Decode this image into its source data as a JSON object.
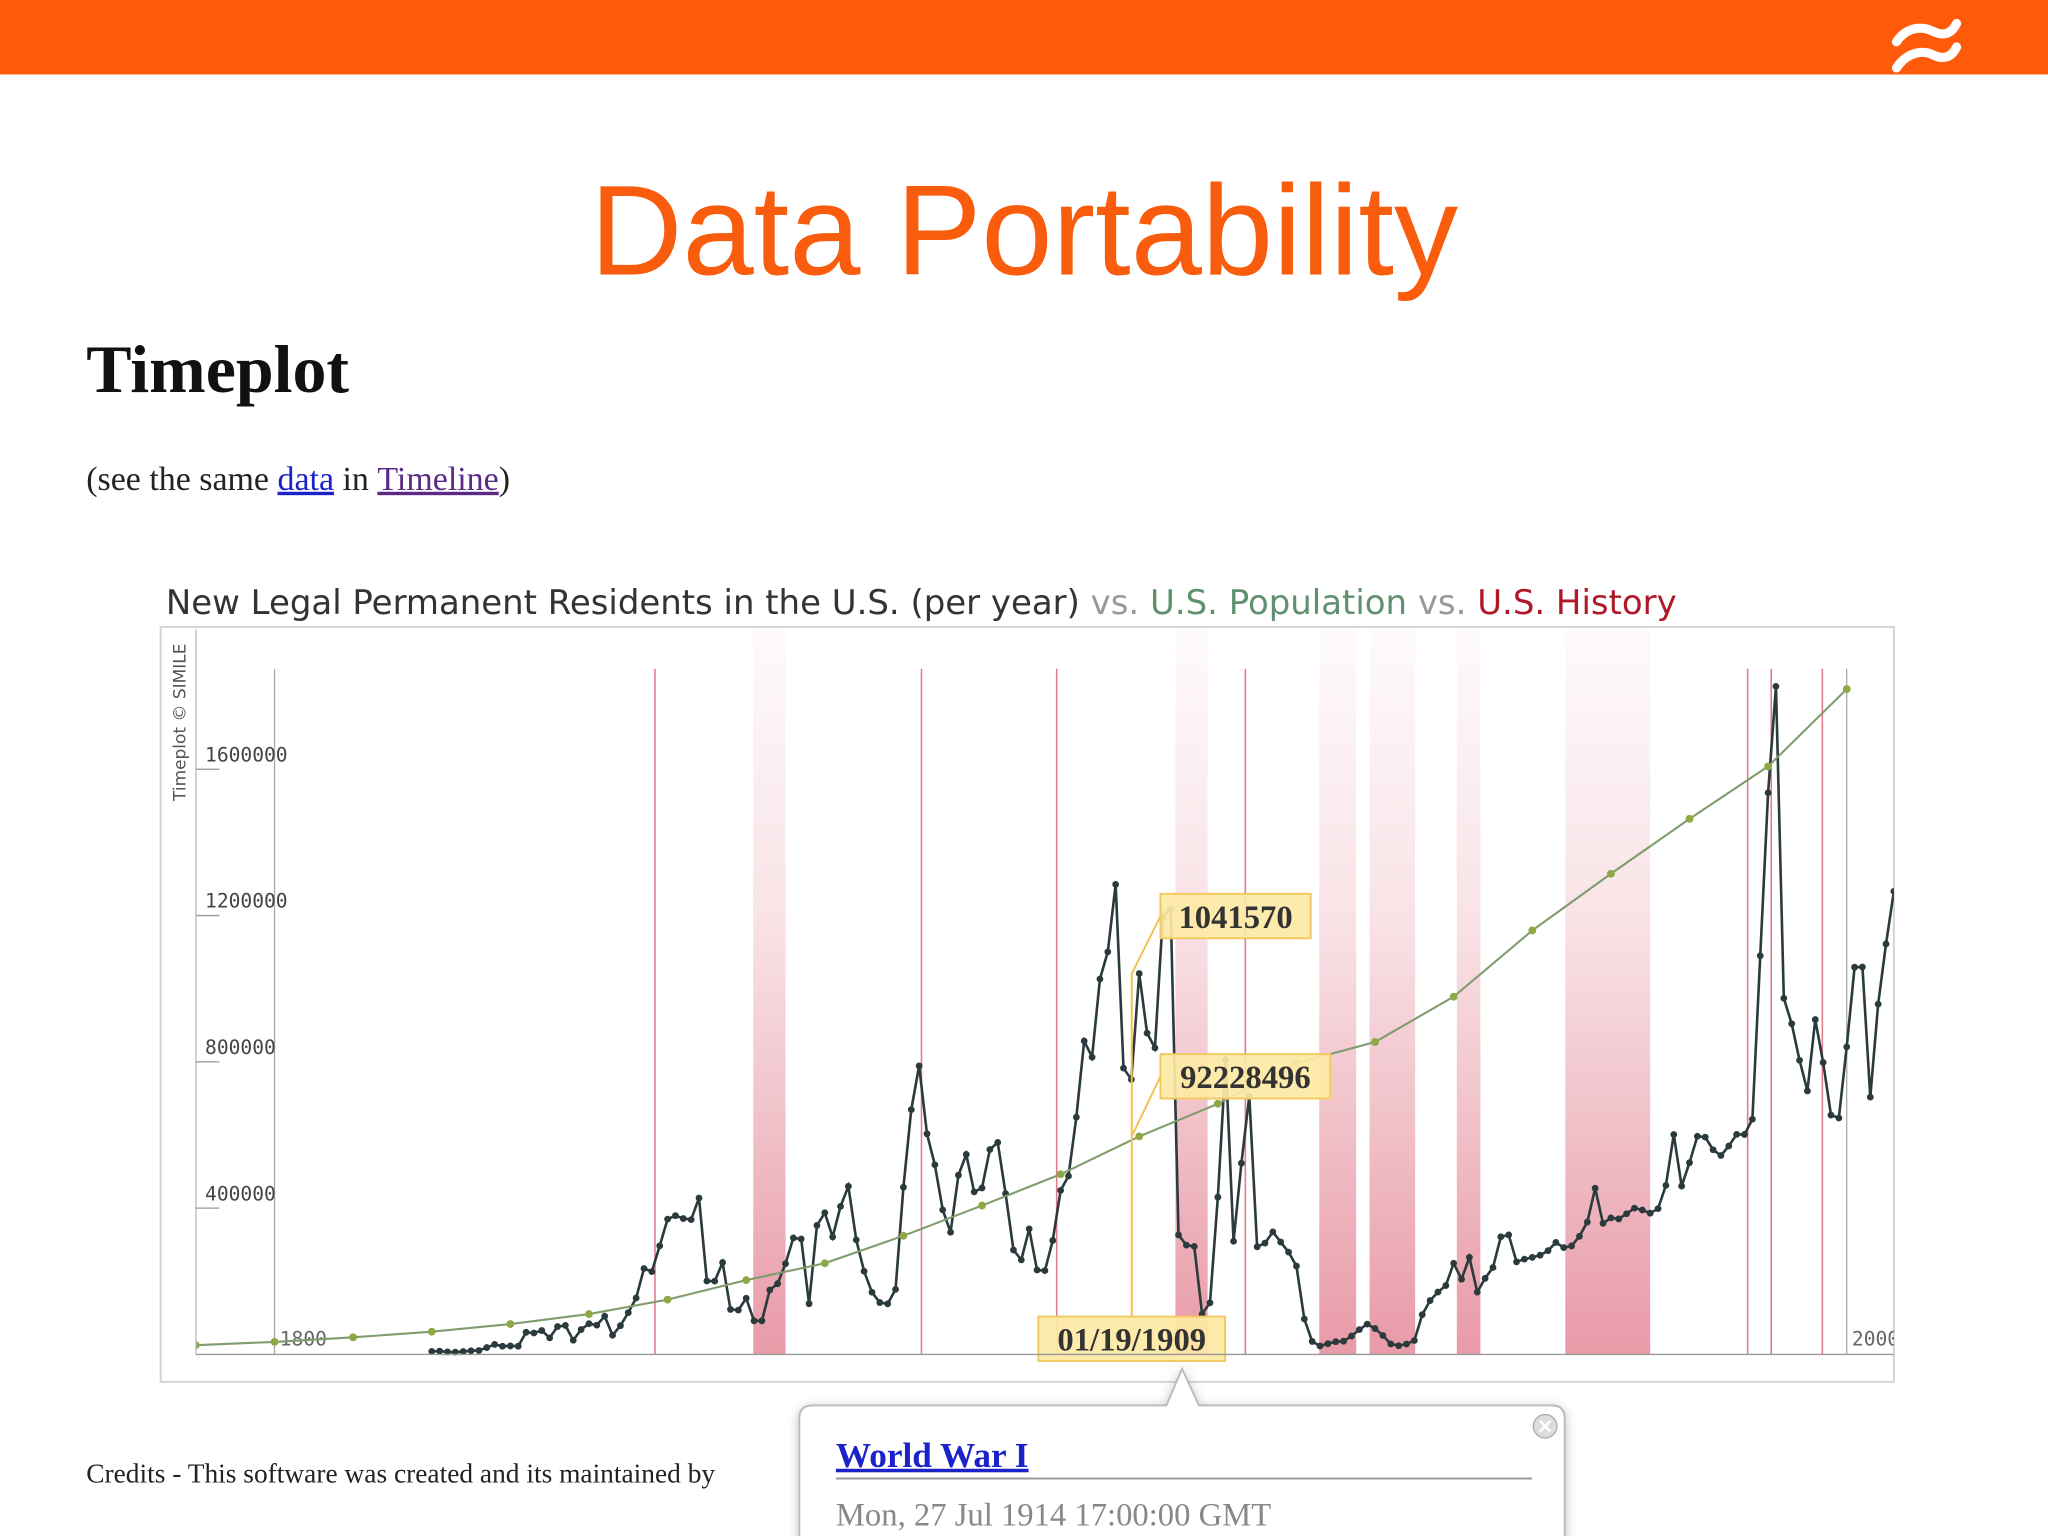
{
  "slide": {
    "title": "Data Portability"
  },
  "page": {
    "heading": "Timeplot",
    "intro": {
      "before": "(see the same ",
      "link1": "data",
      "middle": " in ",
      "link2": "Timeline",
      "after": ")"
    },
    "credits": "Credits - This software was created and its maintained by",
    "side_note": "Timeplot © SIMILE"
  },
  "chart_data": {
    "type": "line",
    "title_parts": [
      {
        "text": "New Legal Permanent Residents in the U.S. (per year)",
        "color": "#333333"
      },
      {
        "text": " vs. ",
        "color": "#999999"
      },
      {
        "text": "U.S. Population",
        "color": "#5f9070"
      },
      {
        "text": " vs. ",
        "color": "#999999"
      },
      {
        "text": "U.S. History",
        "color": "#b0182a"
      }
    ],
    "xlim": [
      1790,
      2006
    ],
    "xticks": [
      1800,
      2000
    ],
    "ylim": [
      0,
      1982000
    ],
    "yticks": [
      400000,
      800000,
      1200000,
      1600000
    ],
    "y2lim": [
      0,
      306600000
    ],
    "series": [
      {
        "name": "New Legal Permanent Residents in the U.S. (per year)",
        "color": "#2b3a3c",
        "x": [
          1820,
          1821,
          1822,
          1823,
          1824,
          1825,
          1826,
          1827,
          1828,
          1829,
          1830,
          1831,
          1832,
          1833,
          1834,
          1835,
          1836,
          1837,
          1838,
          1839,
          1840,
          1841,
          1842,
          1843,
          1844,
          1845,
          1846,
          1847,
          1848,
          1849,
          1850,
          1851,
          1852,
          1853,
          1854,
          1855,
          1856,
          1857,
          1858,
          1859,
          1860,
          1861,
          1862,
          1863,
          1864,
          1865,
          1866,
          1867,
          1868,
          1869,
          1870,
          1871,
          1872,
          1873,
          1874,
          1875,
          1876,
          1877,
          1878,
          1879,
          1880,
          1881,
          1882,
          1883,
          1884,
          1885,
          1886,
          1887,
          1888,
          1889,
          1890,
          1891,
          1892,
          1893,
          1894,
          1895,
          1896,
          1897,
          1898,
          1899,
          1900,
          1901,
          1902,
          1903,
          1904,
          1905,
          1906,
          1907,
          1908,
          1909,
          1910,
          1911,
          1912,
          1913,
          1914,
          1915,
          1916,
          1917,
          1918,
          1919,
          1920,
          1921,
          1922,
          1923,
          1924,
          1925,
          1926,
          1927,
          1928,
          1929,
          1930,
          1931,
          1932,
          1933,
          1934,
          1935,
          1936,
          1937,
          1938,
          1939,
          1940,
          1941,
          1942,
          1943,
          1944,
          1945,
          1946,
          1947,
          1948,
          1949,
          1950,
          1951,
          1952,
          1953,
          1954,
          1955,
          1956,
          1957,
          1958,
          1959,
          1960,
          1961,
          1962,
          1963,
          1964,
          1965,
          1966,
          1967,
          1968,
          1969,
          1970,
          1971,
          1972,
          1973,
          1974,
          1975,
          1976,
          1977,
          1978,
          1979,
          1980,
          1981,
          1982,
          1983,
          1984,
          1985,
          1986,
          1987,
          1988,
          1989,
          1990,
          1991,
          1992,
          1993,
          1994,
          1995,
          1996,
          1997,
          1998,
          1999,
          2000,
          2001,
          2002,
          2003,
          2004,
          2005,
          2006
        ],
        "values": [
          8385,
          9127,
          6911,
          6354,
          7912,
          10199,
          10837,
          18875,
          27382,
          22520,
          23322,
          22633,
          60482,
          58640,
          65365,
          45374,
          76242,
          79340,
          38914,
          68069,
          84066,
          80289,
          104565,
          52496,
          78615,
          114371,
          154416,
          234968,
          226527,
          297024,
          369980,
          379466,
          371603,
          368645,
          427833,
          200877,
          200436,
          251306,
          123126,
          121282,
          153640,
          91918,
          91985,
          176282,
          193418,
          248120,
          318568,
          315722,
          138840,
          352768,
          387203,
          321350,
          404806,
          459803,
          313339,
          227498,
          169986,
          141857,
          138469,
          177826,
          457257,
          669431,
          788992,
          603322,
          518592,
          395346,
          334203,
          490109,
          546889,
          444427,
          455302,
          560319,
          579663,
          439730,
          285631,
          258536,
          343267,
          230832,
          229299,
          311715,
          448572,
          487918,
          648743,
          857046,
          812870,
          1026499,
          1100735,
          1285349,
          782870,
          751786,
          1041570,
          878587,
          838172,
          1197892,
          1218480,
          326700,
          298826,
          295403,
          110618,
          141132,
          430001,
          805228,
          309556,
          522919,
          706896,
          294314,
          304488,
          335175,
          307255,
          279678,
          241700,
          97139,
          35576,
          23068,
          29470,
          34956,
          36329,
          50244,
          67895,
          82998,
          70756,
          51776,
          28781,
          23725,
          28551,
          38119,
          108721,
          147292,
          170570,
          188317,
          249187,
          205717,
          265520,
          170434,
          208177,
          237790,
          321625,
          326867,
          253265,
          260686,
          265398,
          271344,
          283763,
          306260,
          292248,
          296697,
          323040,
          361972,
          454448,
          358579,
          373326,
          370478,
          384685,
          400063,
          394861,
          386194,
          398613,
          462315,
          601442,
          460348,
          524295,
          596600,
          594131,
          559763,
          543903,
          570009,
          601708,
          601516,
          643025,
          1090172,
          1535872,
          1826595,
          973977,
          904292,
          804416,
          720461,
          915900,
          798378,
          654451,
          646568,
          841002,
          1058902,
          1059356,
          703542,
          957883,
          1122373,
          1266129
        ]
      },
      {
        "name": "U.S. Population",
        "color": "#7f9c6e",
        "marker_color": "#8fa845",
        "axis": "y2",
        "x": [
          1790,
          1800,
          1810,
          1820,
          1830,
          1840,
          1850,
          1860,
          1870,
          1880,
          1890,
          1900,
          1910,
          1920,
          1930,
          1940,
          1950,
          1960,
          1970,
          1980,
          1990,
          2000
        ],
        "values": [
          3929214,
          5308483,
          7239881,
          9638453,
          12866020,
          17069453,
          23191876,
          31443321,
          38558371,
          50189209,
          62979766,
          76212168,
          92228496,
          106021537,
          123202624,
          132164569,
          151325798,
          179323175,
          203302031,
          226542199,
          248709873,
          281421906
        ]
      }
    ],
    "events": [
      {
        "start": 1848.4
      },
      {
        "start": 1860.9,
        "end": 1865
      },
      {
        "start": 1882.3
      },
      {
        "start": 1899.5
      },
      {
        "start": 1914.6,
        "end": 1918.7
      },
      {
        "start": 1923.5
      },
      {
        "start": 1932.9,
        "end": 1937.6
      },
      {
        "start": 1939.3,
        "end": 1945.1
      },
      {
        "start": 1950.4,
        "end": 1953.4
      },
      {
        "start": 1964.2,
        "end": 1975
      },
      {
        "start": 1987.4
      },
      {
        "start": 1990.4
      },
      {
        "start": 1996.9
      }
    ],
    "event_color": "#c8102e",
    "hover": {
      "date": "01/19/1909",
      "value_label": "1041570",
      "population_label": "92228496"
    },
    "popup": {
      "title": "World War I",
      "date": "Mon, 27 Jul 1914 17:00:00 GMT"
    }
  }
}
